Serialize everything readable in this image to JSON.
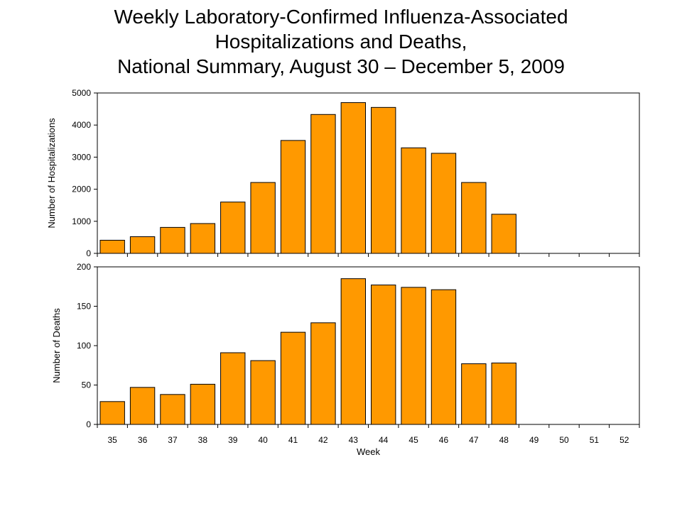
{
  "title_lines": [
    "Weekly Laboratory-Confirmed Influenza-Associated",
    "Hospitalizations and Deaths,",
    "National Summary, August 30 – December 5, 2009"
  ],
  "colors": {
    "bar": "#FF9900",
    "bar_stroke": "#000000",
    "frame": "#000000",
    "background": "#FFFFFF"
  },
  "chart_data": [
    {
      "type": "bar",
      "ylabel": "Number of Hospitalizations",
      "xlabel": "",
      "ylim": [
        0,
        5000
      ],
      "yticks": [
        0,
        1000,
        2000,
        3000,
        4000,
        5000
      ],
      "categories": [
        "35",
        "36",
        "37",
        "38",
        "39",
        "40",
        "41",
        "42",
        "43",
        "44",
        "45",
        "46",
        "47",
        "48",
        "49",
        "50",
        "51",
        "52"
      ],
      "values": [
        410,
        520,
        810,
        930,
        1600,
        2210,
        3520,
        4330,
        4700,
        4550,
        3290,
        3120,
        2210,
        1220,
        0,
        0,
        0,
        0
      ],
      "grid": false
    },
    {
      "type": "bar",
      "ylabel": "Number of Deaths",
      "xlabel": "Week",
      "ylim": [
        0,
        200
      ],
      "yticks": [
        0,
        50,
        100,
        150,
        200
      ],
      "categories": [
        "35",
        "36",
        "37",
        "38",
        "39",
        "40",
        "41",
        "42",
        "43",
        "44",
        "45",
        "46",
        "47",
        "48",
        "49",
        "50",
        "51",
        "52"
      ],
      "values": [
        29,
        47,
        38,
        51,
        91,
        81,
        117,
        129,
        185,
        177,
        174,
        171,
        77,
        78,
        0,
        0,
        0,
        0
      ],
      "grid": false
    }
  ]
}
